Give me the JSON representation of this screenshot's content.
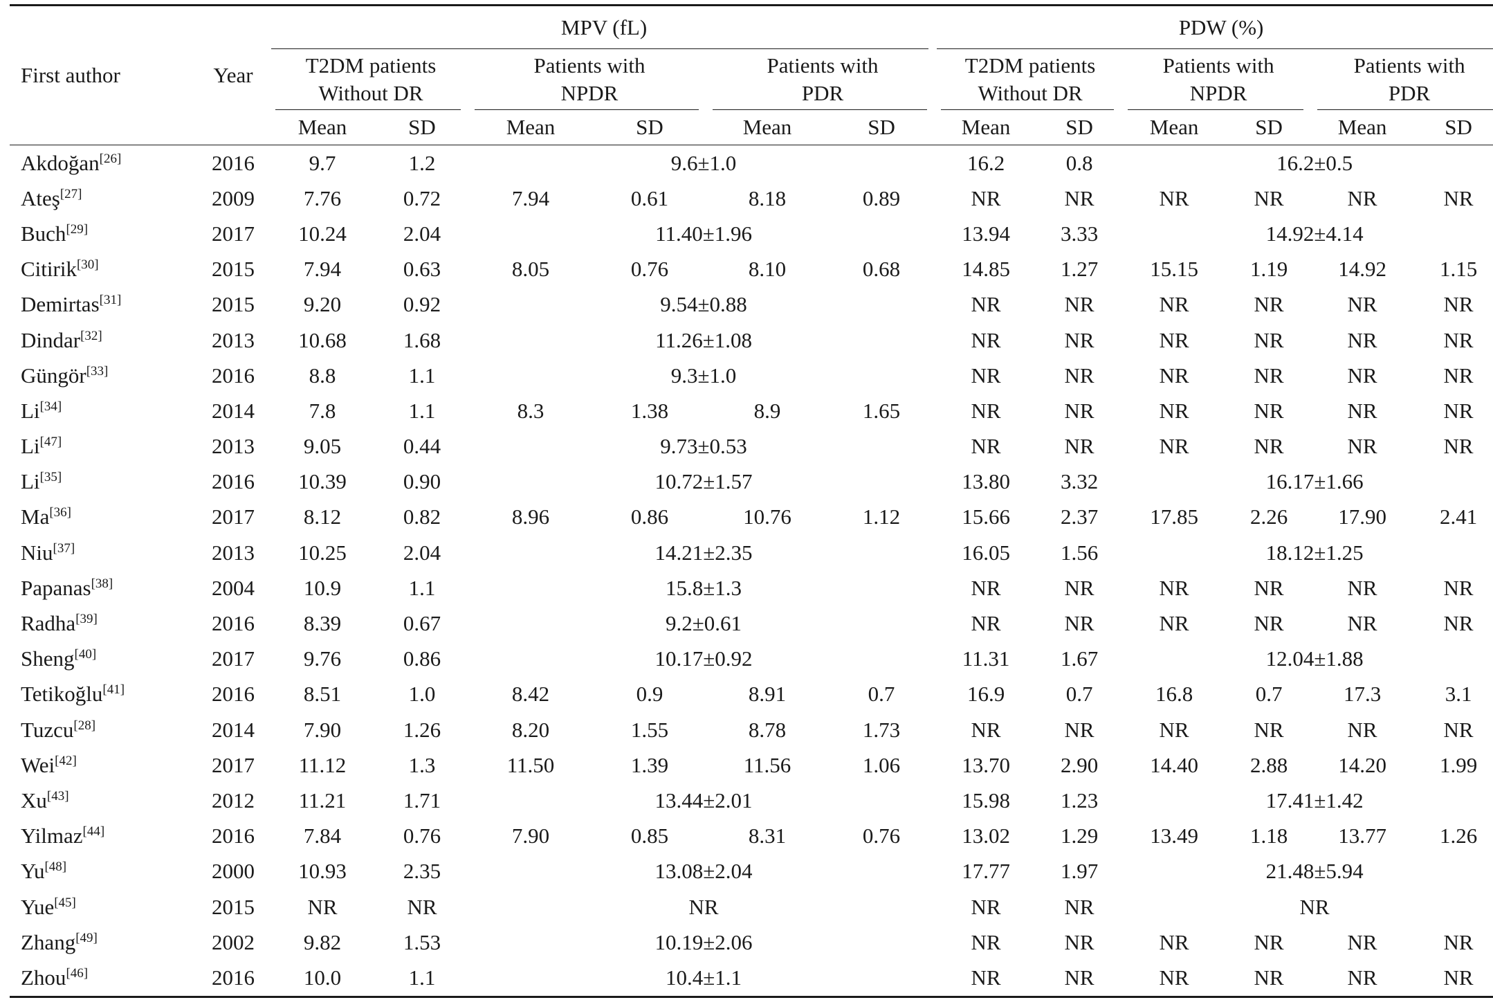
{
  "header": {
    "first_author": "First author",
    "year": "Year",
    "mpv": "MPV (fL)",
    "pdw": "PDW (%)",
    "groups": [
      {
        "line1": "T2DM patients",
        "line2": "Without DR"
      },
      {
        "line1": "Patients with",
        "line2": "NPDR"
      },
      {
        "line1": "Patients with",
        "line2": "PDR"
      },
      {
        "line1": "T2DM patients",
        "line2": "Without DR"
      },
      {
        "line1": "Patients with",
        "line2": "NPDR"
      },
      {
        "line1": "Patients with",
        "line2": "PDR"
      }
    ],
    "mean": "Mean",
    "sd": "SD"
  },
  "rows": [
    {
      "author": "Akdoğan",
      "ref": "[26]",
      "year": "2016",
      "mpv_wo": [
        "9.7",
        "1.2"
      ],
      "mpv_merged": "9.6±1.0",
      "pdw_wo": [
        "16.2",
        "0.8"
      ],
      "pdw_merged": "16.2±0.5"
    },
    {
      "author": "Ateş",
      "ref": "[27]",
      "year": "2009",
      "mpv_wo": [
        "7.76",
        "0.72"
      ],
      "mpv_split": [
        "7.94",
        "0.61",
        "8.18",
        "0.89"
      ],
      "pdw_wo": [
        "NR",
        "NR"
      ],
      "pdw_split": [
        "NR",
        "NR",
        "NR",
        "NR"
      ]
    },
    {
      "author": "Buch",
      "ref": "[29]",
      "year": "2017",
      "mpv_wo": [
        "10.24",
        "2.04"
      ],
      "mpv_merged": "11.40±1.96",
      "pdw_wo": [
        "13.94",
        "3.33"
      ],
      "pdw_merged": "14.92±4.14"
    },
    {
      "author": "Citirik",
      "ref": "[30]",
      "year": "2015",
      "mpv_wo": [
        "7.94",
        "0.63"
      ],
      "mpv_split": [
        "8.05",
        "0.76",
        "8.10",
        "0.68"
      ],
      "pdw_wo": [
        "14.85",
        "1.27"
      ],
      "pdw_split": [
        "15.15",
        "1.19",
        "14.92",
        "1.15"
      ]
    },
    {
      "author": "Demirtas",
      "ref": "[31]",
      "year": "2015",
      "mpv_wo": [
        "9.20",
        "0.92"
      ],
      "mpv_merged": "9.54±0.88",
      "pdw_wo": [
        "NR",
        "NR"
      ],
      "pdw_split": [
        "NR",
        "NR",
        "NR",
        "NR"
      ]
    },
    {
      "author": "Dindar",
      "ref": "[32]",
      "year": "2013",
      "mpv_wo": [
        "10.68",
        "1.68"
      ],
      "mpv_merged": "11.26±1.08",
      "pdw_wo": [
        "NR",
        "NR"
      ],
      "pdw_split": [
        "NR",
        "NR",
        "NR",
        "NR"
      ]
    },
    {
      "author": "Güngör",
      "ref": "[33]",
      "year": "2016",
      "mpv_wo": [
        "8.8",
        "1.1"
      ],
      "mpv_merged": "9.3±1.0",
      "pdw_wo": [
        "NR",
        "NR"
      ],
      "pdw_split": [
        "NR",
        "NR",
        "NR",
        "NR"
      ]
    },
    {
      "author": "Li",
      "ref": "[34]",
      "year": "2014",
      "mpv_wo": [
        "7.8",
        "1.1"
      ],
      "mpv_split": [
        "8.3",
        "1.38",
        "8.9",
        "1.65"
      ],
      "pdw_wo": [
        "NR",
        "NR"
      ],
      "pdw_split": [
        "NR",
        "NR",
        "NR",
        "NR"
      ]
    },
    {
      "author": "Li",
      "ref": "[47]",
      "year": "2013",
      "mpv_wo": [
        "9.05",
        "0.44"
      ],
      "mpv_merged": "9.73±0.53",
      "pdw_wo": [
        "NR",
        "NR"
      ],
      "pdw_split": [
        "NR",
        "NR",
        "NR",
        "NR"
      ]
    },
    {
      "author": "Li",
      "ref": "[35]",
      "year": "2016",
      "mpv_wo": [
        "10.39",
        "0.90"
      ],
      "mpv_merged": "10.72±1.57",
      "pdw_wo": [
        "13.80",
        "3.32"
      ],
      "pdw_merged": "16.17±1.66"
    },
    {
      "author": "Ma",
      "ref": "[36]",
      "year": "2017",
      "mpv_wo": [
        "8.12",
        "0.82"
      ],
      "mpv_split": [
        "8.96",
        "0.86",
        "10.76",
        "1.12"
      ],
      "pdw_wo": [
        "15.66",
        "2.37"
      ],
      "pdw_split": [
        "17.85",
        "2.26",
        "17.90",
        "2.41"
      ]
    },
    {
      "author": "Niu",
      "ref": "[37]",
      "year": "2013",
      "mpv_wo": [
        "10.25",
        "2.04"
      ],
      "mpv_merged": "14.21±2.35",
      "pdw_wo": [
        "16.05",
        "1.56"
      ],
      "pdw_merged": "18.12±1.25"
    },
    {
      "author": "Papanas",
      "ref": "[38]",
      "year": "2004",
      "mpv_wo": [
        "10.9",
        "1.1"
      ],
      "mpv_merged": "15.8±1.3",
      "pdw_wo": [
        "NR",
        "NR"
      ],
      "pdw_split": [
        "NR",
        "NR",
        "NR",
        "NR"
      ]
    },
    {
      "author": "Radha",
      "ref": "[39]",
      "year": "2016",
      "mpv_wo": [
        "8.39",
        "0.67"
      ],
      "mpv_merged": "9.2±0.61",
      "pdw_wo": [
        "NR",
        "NR"
      ],
      "pdw_split": [
        "NR",
        "NR",
        "NR",
        "NR"
      ]
    },
    {
      "author": "Sheng",
      "ref": "[40]",
      "year": "2017",
      "mpv_wo": [
        "9.76",
        "0.86"
      ],
      "mpv_merged": "10.17±0.92",
      "pdw_wo": [
        "11.31",
        "1.67"
      ],
      "pdw_merged": "12.04±1.88"
    },
    {
      "author": "Tetikoğlu",
      "ref": "[41]",
      "year": "2016",
      "mpv_wo": [
        "8.51",
        "1.0"
      ],
      "mpv_split": [
        "8.42",
        "0.9",
        "8.91",
        "0.7"
      ],
      "pdw_wo": [
        "16.9",
        "0.7"
      ],
      "pdw_split": [
        "16.8",
        "0.7",
        "17.3",
        "3.1"
      ]
    },
    {
      "author": "Tuzcu",
      "ref": "[28]",
      "year": "2014",
      "mpv_wo": [
        "7.90",
        "1.26"
      ],
      "mpv_split": [
        "8.20",
        "1.55",
        "8.78",
        "1.73"
      ],
      "pdw_wo": [
        "NR",
        "NR"
      ],
      "pdw_split": [
        "NR",
        "NR",
        "NR",
        "NR"
      ]
    },
    {
      "author": "Wei",
      "ref": "[42]",
      "year": "2017",
      "mpv_wo": [
        "11.12",
        "1.3"
      ],
      "mpv_split": [
        "11.50",
        "1.39",
        "11.56",
        "1.06"
      ],
      "pdw_wo": [
        "13.70",
        "2.90"
      ],
      "pdw_split": [
        "14.40",
        "2.88",
        "14.20",
        "1.99"
      ]
    },
    {
      "author": "Xu",
      "ref": "[43]",
      "year": "2012",
      "mpv_wo": [
        "11.21",
        "1.71"
      ],
      "mpv_merged": "13.44±2.01",
      "pdw_wo": [
        "15.98",
        "1.23"
      ],
      "pdw_merged": "17.41±1.42"
    },
    {
      "author": "Yilmaz",
      "ref": "[44]",
      "year": "2016",
      "mpv_wo": [
        "7.84",
        "0.76"
      ],
      "mpv_split": [
        "7.90",
        "0.85",
        "8.31",
        "0.76"
      ],
      "pdw_wo": [
        "13.02",
        "1.29"
      ],
      "pdw_split": [
        "13.49",
        "1.18",
        "13.77",
        "1.26"
      ]
    },
    {
      "author": "Yu",
      "ref": "[48]",
      "year": "2000",
      "mpv_wo": [
        "10.93",
        "2.35"
      ],
      "mpv_merged": "13.08±2.04",
      "pdw_wo": [
        "17.77",
        "1.97"
      ],
      "pdw_merged": "21.48±5.94"
    },
    {
      "author": "Yue",
      "ref": "[45]",
      "year": "2015",
      "mpv_wo": [
        "NR",
        "NR"
      ],
      "mpv_merged": "NR",
      "pdw_wo": [
        "NR",
        "NR"
      ],
      "pdw_merged": "NR"
    },
    {
      "author": "Zhang",
      "ref": "[49]",
      "year": "2002",
      "mpv_wo": [
        "9.82",
        "1.53"
      ],
      "mpv_merged": "10.19±2.06",
      "pdw_wo": [
        "NR",
        "NR"
      ],
      "pdw_split": [
        "NR",
        "NR",
        "NR",
        "NR"
      ]
    },
    {
      "author": "Zhou",
      "ref": "[46]",
      "year": "2016",
      "mpv_wo": [
        "10.0",
        "1.1"
      ],
      "mpv_merged": "10.4±1.1",
      "pdw_wo": [
        "NR",
        "NR"
      ],
      "pdw_split": [
        "NR",
        "NR",
        "NR",
        "NR"
      ]
    }
  ]
}
